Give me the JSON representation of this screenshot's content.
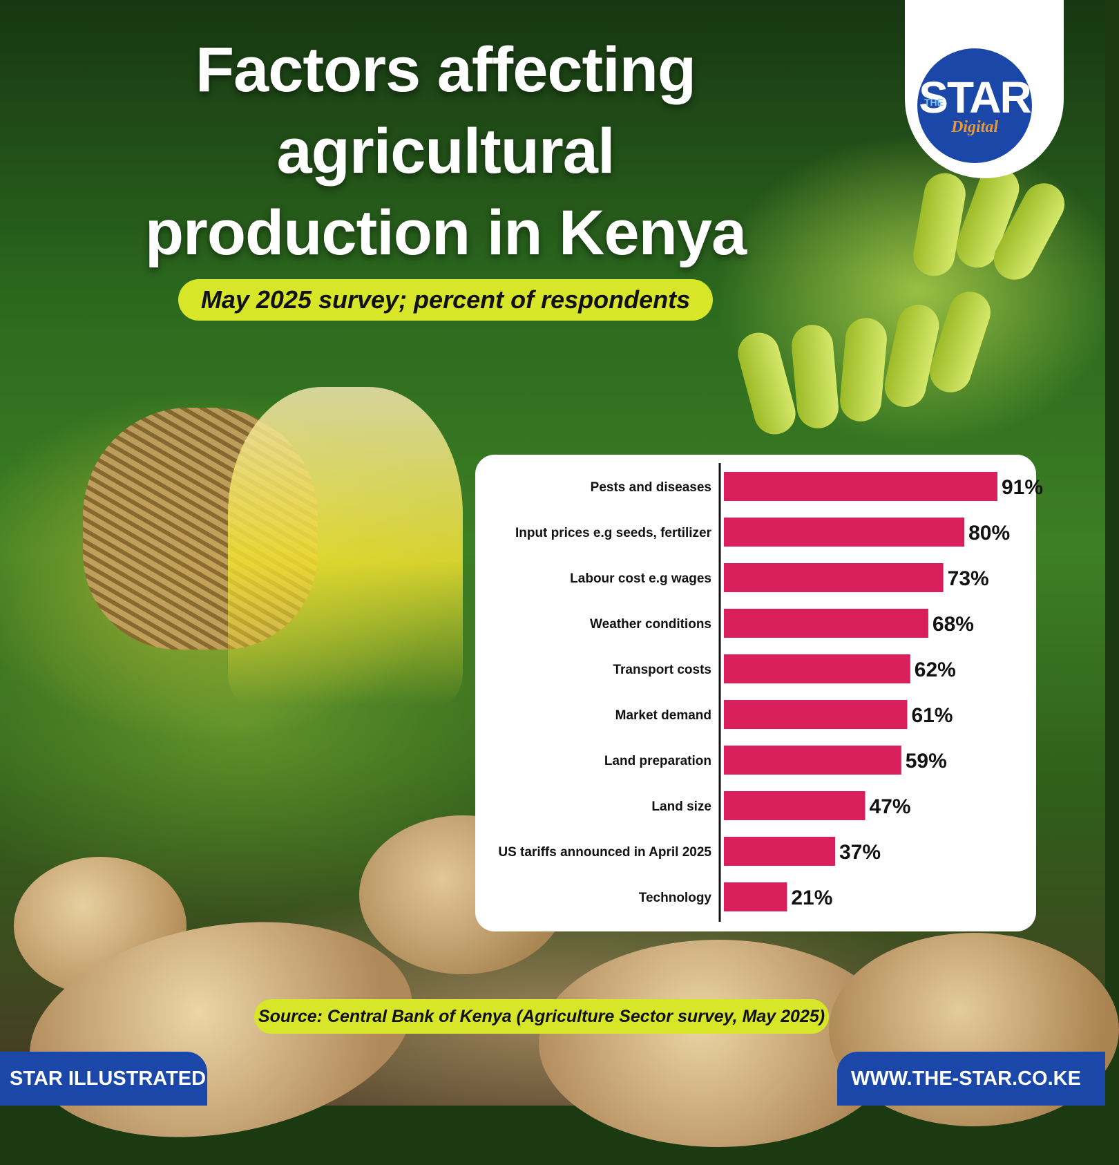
{
  "header": {
    "title_lines": [
      "Factors affecting",
      "agricultural",
      "production in Kenya"
    ],
    "subtitle": "May 2025 survey; percent of respondents"
  },
  "logo": {
    "the": "THE",
    "star": "STAR",
    "digital": "Digital"
  },
  "colors": {
    "bar": "#d81e5b",
    "highlight": "#d8e62a",
    "brand_blue": "#1a47a8"
  },
  "chart_data": {
    "type": "bar",
    "orientation": "horizontal",
    "title": "",
    "xlabel": "",
    "ylabel": "",
    "xlim": [
      0,
      100
    ],
    "grid": false,
    "categories": [
      "Pests and diseases",
      "Input prices e.g seeds, fertilizer",
      "Labour cost e.g wages",
      "Weather conditions",
      "Transport costs",
      "Market demand",
      "Land preparation",
      "Land size",
      "US tariffs announced in April 2025",
      "Technology"
    ],
    "values": [
      91,
      80,
      73,
      68,
      62,
      61,
      59,
      47,
      37,
      21
    ],
    "value_labels": [
      "91%",
      "80%",
      "73%",
      "68%",
      "62%",
      "61%",
      "59%",
      "47%",
      "37%",
      "21%"
    ]
  },
  "footer": {
    "source": "Source: Central Bank of Kenya (Agriculture Sector survey, May 2025)",
    "left": "STAR ILLUSTRATED",
    "right": "WWW.THE-STAR.CO.KE"
  }
}
